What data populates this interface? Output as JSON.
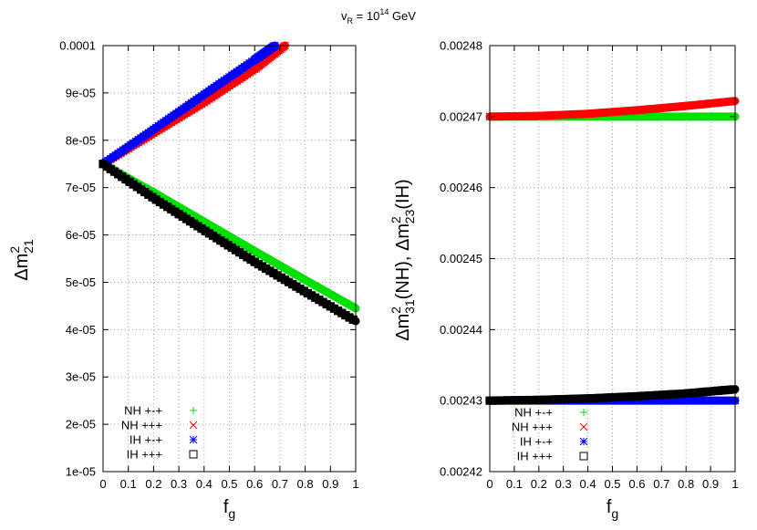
{
  "figure_title": {
    "base": "v",
    "sub": "R",
    "eq": " = 10",
    "sup": "14",
    "unit": " GeV"
  },
  "chart_data": [
    {
      "type": "scatter",
      "panel": "left",
      "xlabel": {
        "main": "f",
        "sub": "g"
      },
      "ylabel": {
        "pre": "Δm",
        "sup": "2",
        "sub": "21",
        "post": ""
      },
      "xlim": [
        0,
        1
      ],
      "ylim": [
        1e-05,
        0.0001
      ],
      "xticks": [
        0,
        0.1,
        0.2,
        0.3,
        0.4,
        0.5,
        0.6,
        0.7,
        0.8,
        0.9,
        1
      ],
      "xtick_labels": [
        "0",
        "0.1",
        "0.2",
        "0.3",
        "0.4",
        "0.5",
        "0.6",
        "0.7",
        "0.8",
        "0.9",
        "1"
      ],
      "yticks": [
        1e-05,
        2e-05,
        3e-05,
        4e-05,
        5e-05,
        6e-05,
        7e-05,
        8e-05,
        9e-05,
        0.0001
      ],
      "ytick_labels": [
        "1e-05",
        "2e-05",
        "3e-05",
        "4e-05",
        "5e-05",
        "6e-05",
        "7e-05",
        "8e-05",
        "9e-05",
        "0.0001"
      ],
      "grid": true,
      "legend_position": "bottom-left",
      "series": [
        {
          "name": "NH +-+",
          "marker": "plus",
          "color": "#00e000",
          "x": [
            0,
            0.2,
            0.4,
            0.6,
            0.8,
            1.0
          ],
          "y": [
            7.5e-05,
            6.9e-05,
            6.28e-05,
            5.66e-05,
            5.05e-05,
            4.45e-05
          ]
        },
        {
          "name": "NH +++",
          "marker": "cross",
          "color": "#ff0000",
          "x": [
            0,
            0.2,
            0.4,
            0.6,
            0.72
          ],
          "y": [
            7.5e-05,
            8.15e-05,
            8.8e-05,
            9.5e-05,
            0.0001
          ]
        },
        {
          "name": "IH +-+",
          "marker": "star",
          "color": "#0000ff",
          "x": [
            0,
            0.2,
            0.4,
            0.6,
            0.68
          ],
          "y": [
            7.5e-05,
            8.23e-05,
            8.97e-05,
            9.7e-05,
            0.0001
          ]
        },
        {
          "name": "IH +++",
          "marker": "square",
          "color": "#000000",
          "x": [
            0,
            0.2,
            0.4,
            0.6,
            0.8,
            1.0
          ],
          "y": [
            7.5e-05,
            6.78e-05,
            6.1e-05,
            5.43e-05,
            4.8e-05,
            4.18e-05
          ]
        }
      ]
    },
    {
      "type": "scatter",
      "panel": "right",
      "xlabel": {
        "main": "f",
        "sub": "g"
      },
      "ylabel": {
        "pre": "Δm",
        "sup": "2",
        "sub": "31",
        "post": "(NH), Δm",
        "sup2": "2",
        "sub2": "23",
        "post2": "(IH)"
      },
      "xlim": [
        0,
        1
      ],
      "ylim": [
        0.00242,
        0.00248
      ],
      "xticks": [
        0,
        0.1,
        0.2,
        0.3,
        0.4,
        0.5,
        0.6,
        0.7,
        0.8,
        0.9,
        1
      ],
      "xtick_labels": [
        "0",
        "0.1",
        "0.2",
        "0.3",
        "0.4",
        "0.5",
        "0.6",
        "0.7",
        "0.8",
        "0.9",
        "1"
      ],
      "yticks": [
        0.00242,
        0.00243,
        0.00244,
        0.00245,
        0.00246,
        0.00247,
        0.00248
      ],
      "ytick_labels": [
        "0.00242",
        "0.00243",
        "0.00244",
        "0.00245",
        "0.00246",
        "0.00247",
        "0.00248"
      ],
      "grid": true,
      "legend_position": "bottom-left",
      "series": [
        {
          "name": "NH +-+",
          "marker": "plus",
          "color": "#00e000",
          "x": [
            0,
            0.5,
            1.0
          ],
          "y": [
            0.00247,
            0.00247,
            0.00247
          ]
        },
        {
          "name": "NH +++",
          "marker": "cross",
          "color": "#ff0000",
          "x": [
            0,
            0.2,
            0.4,
            0.6,
            0.8,
            1.0
          ],
          "y": [
            0.00247,
            0.0024701,
            0.0024704,
            0.0024709,
            0.0024715,
            0.0024722
          ]
        },
        {
          "name": "IH +-+",
          "marker": "star",
          "color": "#0000ff",
          "x": [
            0,
            0.5,
            1.0
          ],
          "y": [
            0.00243,
            0.00243,
            0.00243
          ]
        },
        {
          "name": "IH +++",
          "marker": "square",
          "color": "#000000",
          "x": [
            0,
            0.2,
            0.4,
            0.6,
            0.8,
            1.0
          ],
          "y": [
            0.00243,
            0.0024301,
            0.0024303,
            0.0024306,
            0.002431,
            0.0024316
          ]
        }
      ]
    }
  ]
}
